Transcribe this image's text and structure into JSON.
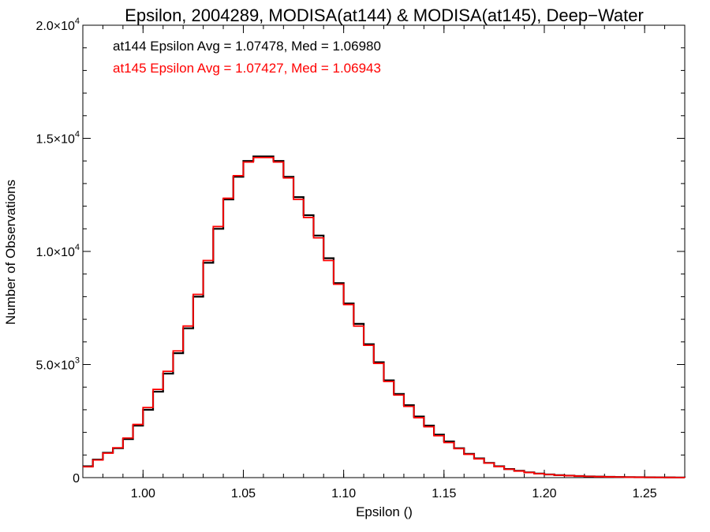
{
  "chart_data": {
    "type": "line",
    "step": true,
    "title": "Epsilon, 2004289, MODISA(at144) & MODISA(at145), Deep−Water",
    "xlabel": "Epsilon ()",
    "ylabel": "Number of Observations",
    "xlim": [
      0.97,
      1.27
    ],
    "ylim": [
      0,
      20000
    ],
    "x_ticks": [
      {
        "value": 1.0,
        "label": "1.00"
      },
      {
        "value": 1.05,
        "label": "1.05"
      },
      {
        "value": 1.1,
        "label": "1.10"
      },
      {
        "value": 1.15,
        "label": "1.15"
      },
      {
        "value": 1.2,
        "label": "1.20"
      },
      {
        "value": 1.25,
        "label": "1.25"
      }
    ],
    "y_ticks": [
      {
        "value": 0,
        "mantissa": "0",
        "exponent": ""
      },
      {
        "value": 5000,
        "mantissa": "5.0×10",
        "exponent": "3"
      },
      {
        "value": 10000,
        "mantissa": "1.0×10",
        "exponent": "4"
      },
      {
        "value": 15000,
        "mantissa": "1.5×10",
        "exponent": "4"
      },
      {
        "value": 20000,
        "mantissa": "2.0×10",
        "exponent": "4"
      }
    ],
    "x_minor_step": 0.01,
    "y_minor_step": 1000,
    "annotations": [
      {
        "text": "at144 Epsilon Avg = 1.07478, Med = 1.06980",
        "color": "#000000"
      },
      {
        "text": "at145 Epsilon Avg = 1.07427, Med = 1.06943",
        "color": "#ff0000"
      }
    ],
    "series": [
      {
        "color": "#000000",
        "x": [
          0.97,
          0.975,
          0.98,
          0.985,
          0.99,
          0.995,
          1.0,
          1.005,
          1.01,
          1.015,
          1.02,
          1.025,
          1.03,
          1.035,
          1.04,
          1.045,
          1.05,
          1.055,
          1.06,
          1.065,
          1.07,
          1.075,
          1.08,
          1.085,
          1.09,
          1.095,
          1.1,
          1.105,
          1.11,
          1.115,
          1.12,
          1.125,
          1.13,
          1.135,
          1.14,
          1.145,
          1.15,
          1.155,
          1.16,
          1.165,
          1.17,
          1.175,
          1.18,
          1.185,
          1.19,
          1.195,
          1.2,
          1.205,
          1.21,
          1.215,
          1.22,
          1.225,
          1.23,
          1.235,
          1.24,
          1.245,
          1.25,
          1.255,
          1.26,
          1.265,
          1.27
        ],
        "y": [
          500,
          800,
          1100,
          1300,
          1700,
          2300,
          3000,
          3800,
          4600,
          5500,
          6600,
          8000,
          9500,
          11000,
          12300,
          13300,
          14000,
          14200,
          14200,
          14000,
          13300,
          12400,
          11600,
          10700,
          9700,
          8600,
          7700,
          6800,
          5900,
          5100,
          4300,
          3700,
          3200,
          2700,
          2300,
          1900,
          1600,
          1300,
          1050,
          850,
          650,
          500,
          380,
          300,
          230,
          180,
          140,
          110,
          90,
          70,
          55,
          45,
          35,
          28,
          22,
          17,
          13,
          10,
          8,
          6,
          5
        ]
      },
      {
        "color": "#ff0000",
        "x": [
          0.97,
          0.975,
          0.98,
          0.985,
          0.99,
          0.995,
          1.0,
          1.005,
          1.01,
          1.015,
          1.02,
          1.025,
          1.03,
          1.035,
          1.04,
          1.045,
          1.05,
          1.055,
          1.06,
          1.065,
          1.07,
          1.075,
          1.08,
          1.085,
          1.09,
          1.095,
          1.1,
          1.105,
          1.11,
          1.115,
          1.12,
          1.125,
          1.13,
          1.135,
          1.14,
          1.145,
          1.15,
          1.155,
          1.16,
          1.165,
          1.17,
          1.175,
          1.18,
          1.185,
          1.19,
          1.195,
          1.2,
          1.205,
          1.21,
          1.215,
          1.22,
          1.225,
          1.23,
          1.235,
          1.24,
          1.245,
          1.25,
          1.255,
          1.26,
          1.265,
          1.27
        ],
        "y": [
          480,
          780,
          1080,
          1320,
          1750,
          2350,
          3100,
          3900,
          4700,
          5600,
          6700,
          8100,
          9600,
          11100,
          12350,
          13350,
          13950,
          14150,
          14150,
          13950,
          13250,
          12300,
          11500,
          10600,
          9600,
          8550,
          7650,
          6700,
          5850,
          5050,
          4250,
          3650,
          3150,
          2650,
          2250,
          1850,
          1550,
          1280,
          1030,
          830,
          640,
          490,
          370,
          290,
          225,
          175,
          135,
          105,
          85,
          68,
          52,
          42,
          33,
          26,
          20,
          16,
          12,
          9,
          7,
          5,
          4
        ]
      }
    ]
  }
}
